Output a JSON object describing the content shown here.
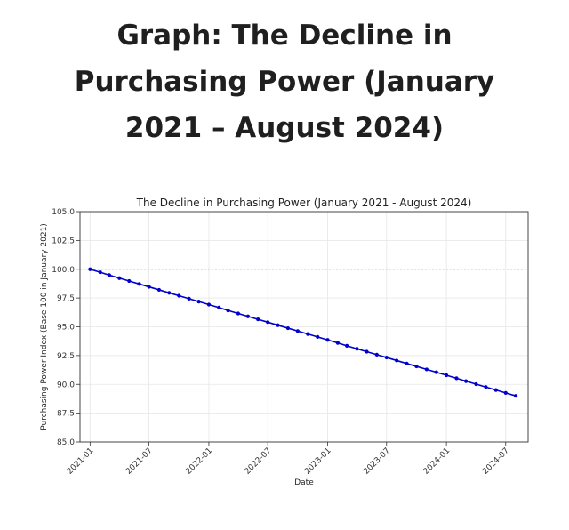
{
  "page": {
    "heading_lines": [
      "Graph: The Decline in",
      "Purchasing Power (January",
      "2021 – August 2024)"
    ]
  },
  "chart_data": {
    "type": "line",
    "title": "The Decline in Purchasing Power (January 2021 - August 2024)",
    "xlabel": "Date",
    "ylabel": "Purchasing Power Index (Base 100 in January 2021)",
    "xlim": [
      "2020-12-01",
      "2024-09-08"
    ],
    "ylim": [
      85.0,
      105.0
    ],
    "yticks": [
      85.0,
      87.5,
      90.0,
      92.5,
      95.0,
      97.5,
      100.0,
      102.5,
      105.0
    ],
    "xticks": [
      "2021-01",
      "2021-07",
      "2022-01",
      "2022-07",
      "2023-01",
      "2023-07",
      "2024-01",
      "2024-07"
    ],
    "grid": true,
    "reference_line": {
      "y": 100.0,
      "style": "dashed",
      "color": "#999999"
    },
    "series": [
      {
        "color": "#0000cc",
        "marker": "circle",
        "x": [
          "2021-01",
          "2021-02",
          "2021-03",
          "2021-04",
          "2021-05",
          "2021-06",
          "2021-07",
          "2021-08",
          "2021-09",
          "2021-10",
          "2021-11",
          "2021-12",
          "2022-01",
          "2022-02",
          "2022-03",
          "2022-04",
          "2022-05",
          "2022-06",
          "2022-07",
          "2022-08",
          "2022-09",
          "2022-10",
          "2022-11",
          "2022-12",
          "2023-01",
          "2023-02",
          "2023-03",
          "2023-04",
          "2023-05",
          "2023-06",
          "2023-07",
          "2023-08",
          "2023-09",
          "2023-10",
          "2023-11",
          "2023-12",
          "2024-01",
          "2024-02",
          "2024-03",
          "2024-04",
          "2024-05",
          "2024-06",
          "2024-07",
          "2024-08"
        ],
        "y": [
          100.0,
          99.74,
          99.49,
          99.23,
          98.98,
          98.72,
          98.47,
          98.21,
          97.95,
          97.7,
          97.44,
          97.19,
          96.93,
          96.67,
          96.42,
          96.16,
          95.91,
          95.65,
          95.4,
          95.14,
          94.88,
          94.63,
          94.37,
          94.12,
          93.86,
          93.6,
          93.35,
          93.09,
          92.84,
          92.58,
          92.33,
          92.07,
          91.81,
          91.56,
          91.3,
          91.05,
          90.79,
          90.53,
          90.28,
          90.02,
          89.77,
          89.51,
          89.26,
          89.0
        ]
      }
    ]
  }
}
